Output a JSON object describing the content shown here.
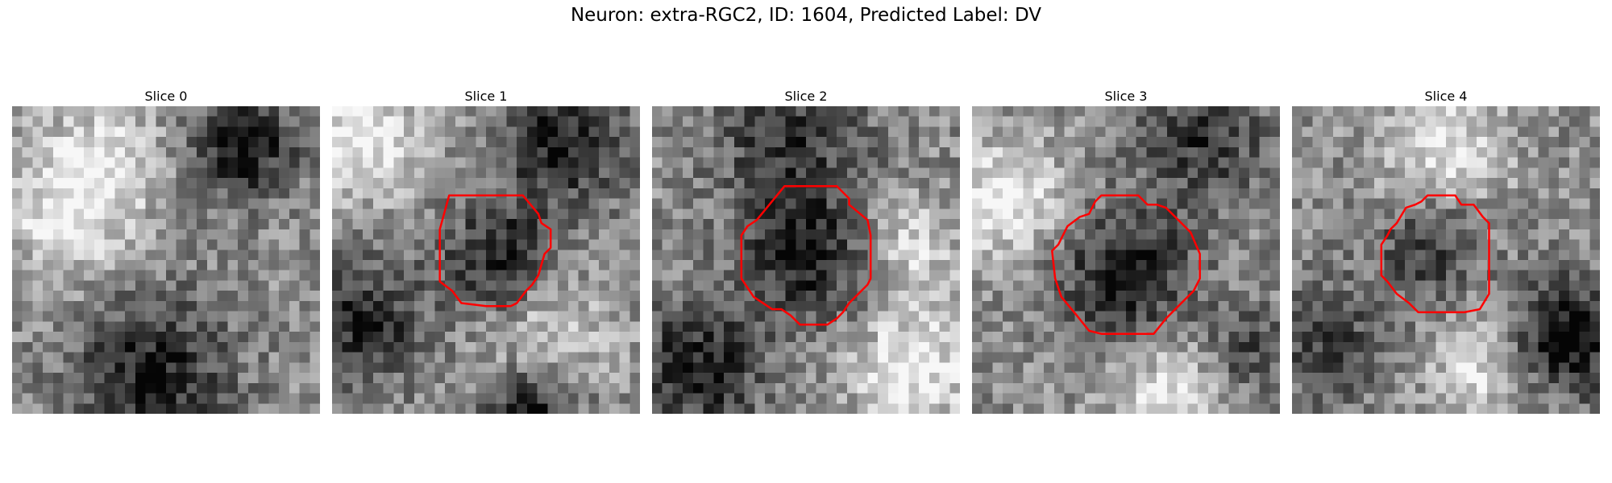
{
  "figure": {
    "title": "Neuron: extra-RGC2, ID: 1604, Predicted Label: DV",
    "contour_color": "#ff0000",
    "colormap": "gray"
  },
  "slices": [
    {
      "label": "Slice 0",
      "has_contour": false
    },
    {
      "label": "Slice 1",
      "has_contour": true
    },
    {
      "label": "Slice 2",
      "has_contour": true
    },
    {
      "label": "Slice 3",
      "has_contour": true
    },
    {
      "label": "Slice 4",
      "has_contour": true
    }
  ]
}
